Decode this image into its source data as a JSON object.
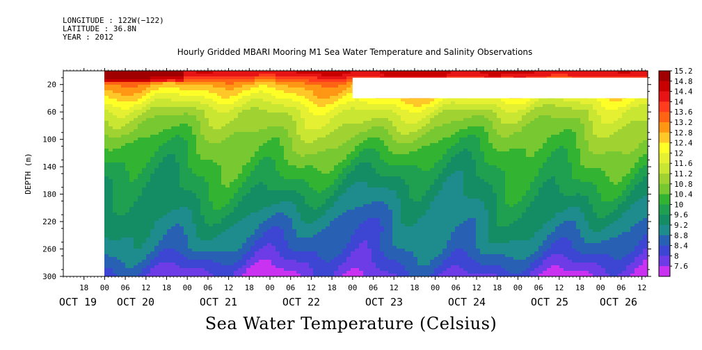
{
  "header": {
    "longitude": "LONGITUDE : 122W(−122)",
    "latitude": "LATITUDE : 36.8N",
    "year": "YEAR : 2012"
  },
  "title": "Hourly Gridded MBARI Mooring M1 Sea Water Temperature and Salinity Observations",
  "colorbar_title": "Sea Water Temperature (Celsius)",
  "chart_data": {
    "type": "heatmap",
    "ylabel": "DEPTH (m)",
    "y_axis_reversed": true,
    "ylim": [
      0,
      300
    ],
    "y_ticks": [
      20,
      60,
      100,
      140,
      180,
      220,
      260,
      300
    ],
    "x_start": "2012-10-19 00:00",
    "x_end": "2012-10-26 18:00",
    "x_hour_labels": [
      "18",
      "00",
      "06",
      "12",
      "18",
      "00",
      "06",
      "12",
      "18",
      "00",
      "06",
      "12",
      "18",
      "00",
      "06",
      "12",
      "18",
      "00",
      "06",
      "12",
      "18",
      "00",
      "06",
      "12",
      "18",
      "00",
      "06",
      "12",
      "18",
      "00",
      "06",
      "12"
    ],
    "x_date_labels": [
      "OCT 19",
      "OCT 20",
      "OCT 21",
      "OCT 22",
      "OCT 23",
      "OCT 24",
      "OCT 25",
      "OCT 26"
    ],
    "data_begins": "2012-10-20 00:00",
    "missing_regions": [
      {
        "from": "2012-10-23 00:00",
        "to": "2012-10-26 18:00",
        "depth_from": 10,
        "depth_to": 40
      }
    ],
    "depth_profile_typical": [
      {
        "depth": 5,
        "temp": 14.4
      },
      {
        "depth": 20,
        "temp": 13.0
      },
      {
        "depth": 40,
        "temp": 12.2
      },
      {
        "depth": 60,
        "temp": 11.4
      },
      {
        "depth": 100,
        "temp": 10.6
      },
      {
        "depth": 140,
        "temp": 10.0
      },
      {
        "depth": 180,
        "temp": 9.5
      },
      {
        "depth": 220,
        "temp": 9.0
      },
      {
        "depth": 260,
        "temp": 8.6
      },
      {
        "depth": 300,
        "temp": 7.8
      }
    ],
    "colorbar": {
      "levels": [
        "15.2",
        "14.8",
        "14.4",
        "14",
        "13.6",
        "13.2",
        "12.8",
        "12.4",
        "12",
        "11.6",
        "11.2",
        "10.8",
        "10.4",
        "10",
        "9.6",
        "9.2",
        "8.8",
        "8.4",
        "8",
        "7.6"
      ],
      "colors": [
        "#a00000",
        "#c80000",
        "#e61414",
        "#ff3c1e",
        "#ff6414",
        "#ff9614",
        "#ffc828",
        "#ffff28",
        "#e6f032",
        "#c8e632",
        "#a0d232",
        "#78c832",
        "#32b432",
        "#1ea050",
        "#148c64",
        "#1e8c8c",
        "#2860b4",
        "#3c46d2",
        "#6e3ce6",
        "#c832f0"
      ]
    }
  }
}
